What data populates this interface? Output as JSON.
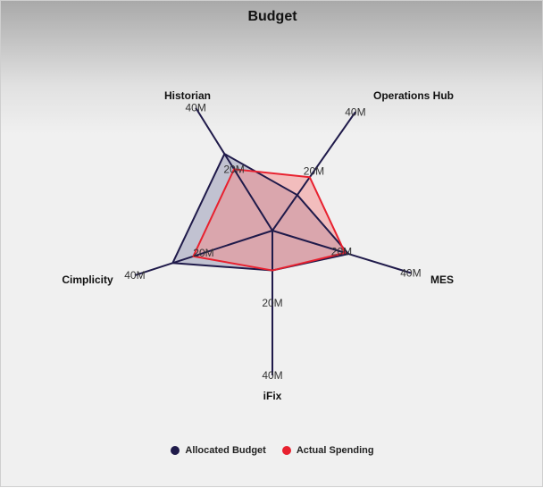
{
  "chart_data": {
    "type": "radar",
    "title": "Budget",
    "categories": [
      "Historian",
      "Operations Hub",
      "MES",
      "iFix",
      "Cimplicity"
    ],
    "tick_labels": [
      "20M",
      "40M"
    ],
    "range": [
      0,
      40
    ],
    "series": [
      {
        "name": "Allocated Budget",
        "values": [
          25,
          12,
          22,
          11,
          29
        ]
      },
      {
        "name": "Actual Spending",
        "values": [
          20,
          18,
          21,
          11,
          23
        ]
      }
    ],
    "grid": false,
    "legend": "bottom-center",
    "colors": {
      "series": [
        "#1f1a4a",
        "#e8212f"
      ],
      "fill": [
        "#9a9cb8",
        "#f38a8a"
      ],
      "axis": "#1f1a4a"
    }
  }
}
